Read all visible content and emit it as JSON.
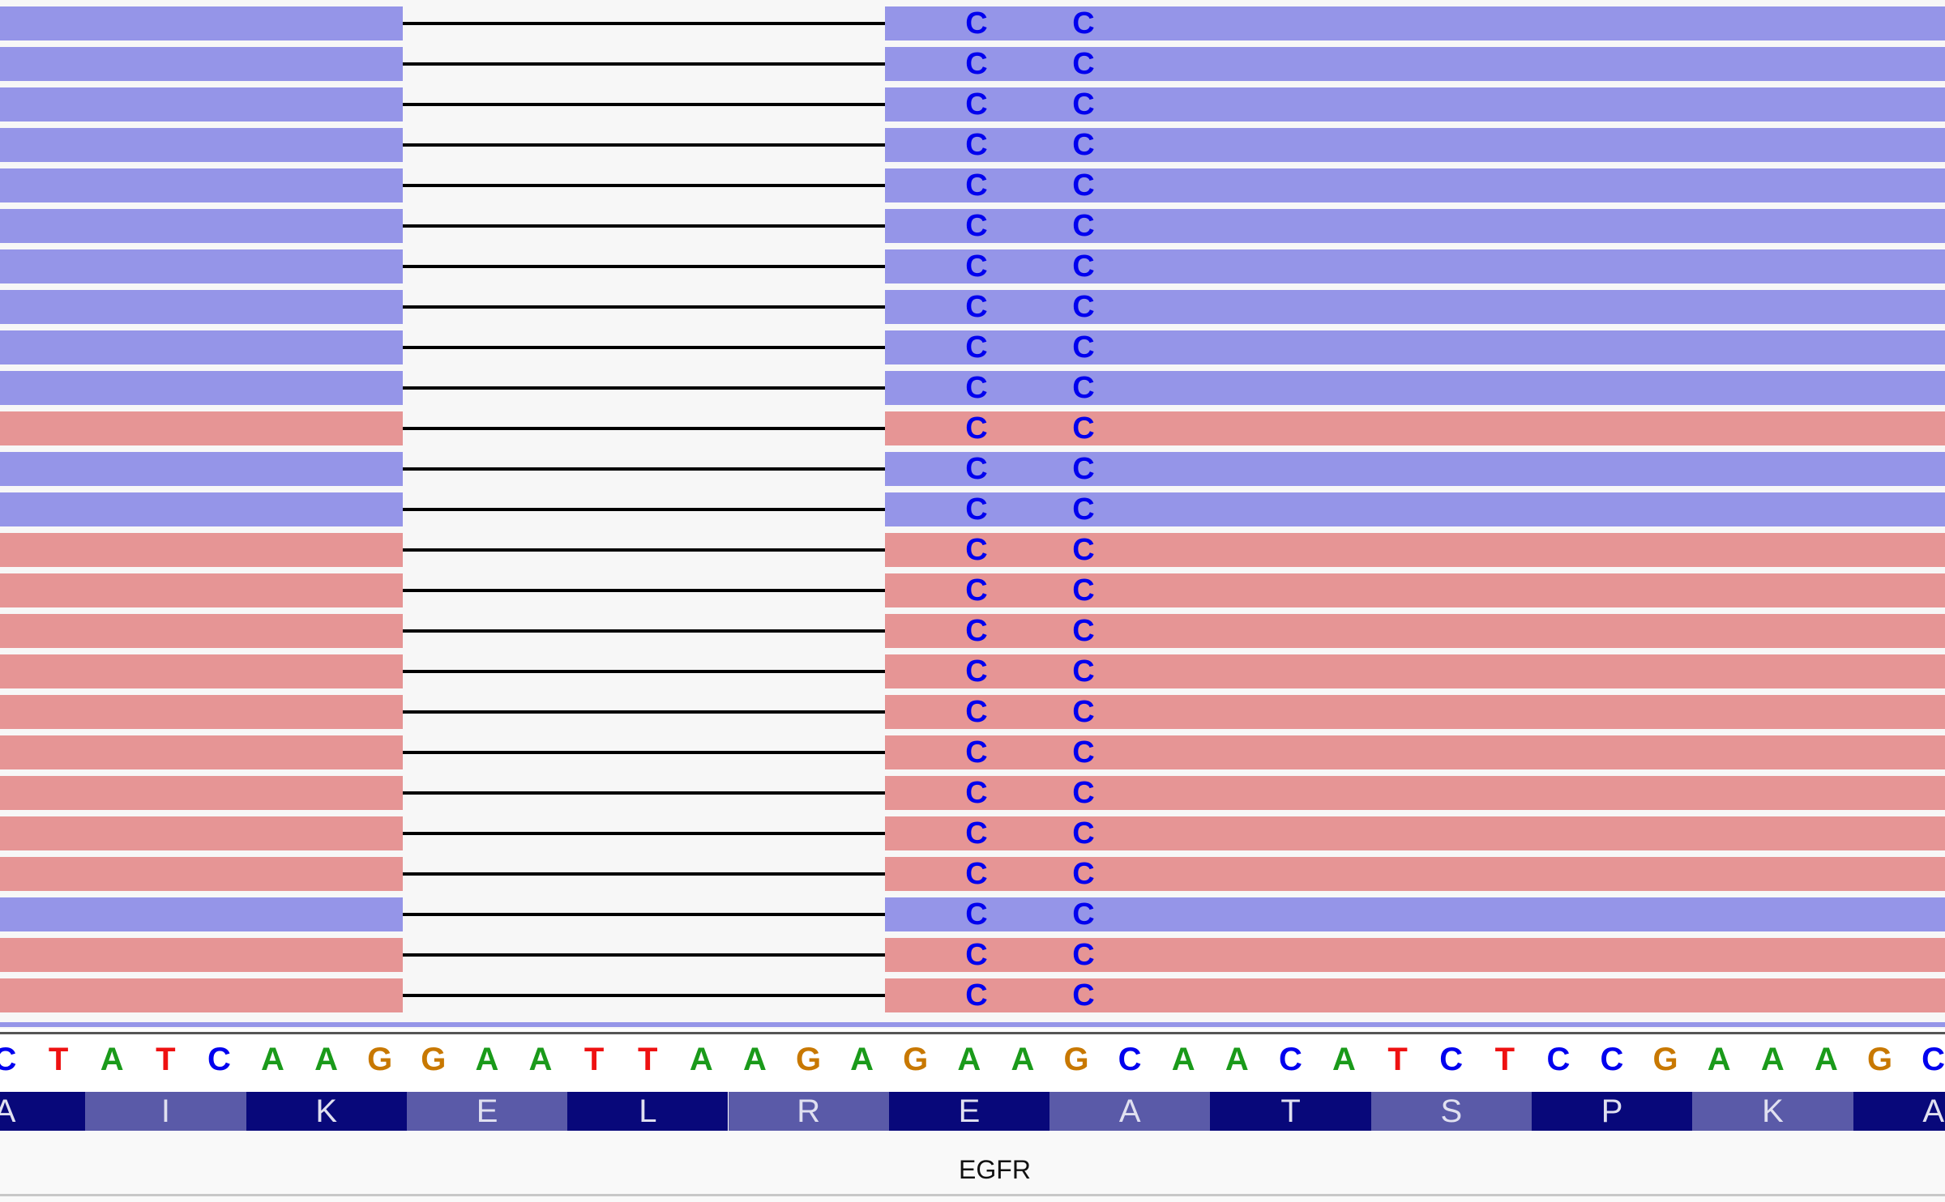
{
  "colors": {
    "forward_strand": "#9595e8",
    "reverse_strand": "#e69595",
    "deletion_gap_background": "#f7f7f7",
    "deletion_line": "#000000",
    "mismatch_base": "#0000ee",
    "base_A": "#1a9a1a",
    "base_C": "#0000ee",
    "base_T": "#ee1111",
    "base_G": "#c87800",
    "aa_dark": "#08087a",
    "aa_light": "#5a5aa8"
  },
  "reads": [
    {
      "strand": "forward",
      "mismatches": [
        "C",
        "C"
      ]
    },
    {
      "strand": "forward",
      "mismatches": [
        "C",
        "C"
      ]
    },
    {
      "strand": "forward",
      "mismatches": [
        "C",
        "C"
      ]
    },
    {
      "strand": "forward",
      "mismatches": [
        "C",
        "C"
      ]
    },
    {
      "strand": "forward",
      "mismatches": [
        "C",
        "C"
      ]
    },
    {
      "strand": "forward",
      "mismatches": [
        "C",
        "C"
      ]
    },
    {
      "strand": "forward",
      "mismatches": [
        "C",
        "C"
      ]
    },
    {
      "strand": "forward",
      "mismatches": [
        "C",
        "C"
      ]
    },
    {
      "strand": "forward",
      "mismatches": [
        "C",
        "C"
      ]
    },
    {
      "strand": "forward",
      "mismatches": [
        "C",
        "C"
      ]
    },
    {
      "strand": "reverse",
      "mismatches": [
        "C",
        "C"
      ]
    },
    {
      "strand": "forward",
      "mismatches": [
        "C",
        "C"
      ]
    },
    {
      "strand": "forward",
      "mismatches": [
        "C",
        "C"
      ]
    },
    {
      "strand": "reverse",
      "mismatches": [
        "C",
        "C"
      ]
    },
    {
      "strand": "reverse",
      "mismatches": [
        "C",
        "C"
      ]
    },
    {
      "strand": "reverse",
      "mismatches": [
        "C",
        "C"
      ]
    },
    {
      "strand": "reverse",
      "mismatches": [
        "C",
        "C"
      ]
    },
    {
      "strand": "reverse",
      "mismatches": [
        "C",
        "C"
      ]
    },
    {
      "strand": "reverse",
      "mismatches": [
        "C",
        "C"
      ]
    },
    {
      "strand": "reverse",
      "mismatches": [
        "C",
        "C"
      ]
    },
    {
      "strand": "reverse",
      "mismatches": [
        "C",
        "C"
      ]
    },
    {
      "strand": "reverse",
      "mismatches": [
        "C",
        "C"
      ]
    },
    {
      "strand": "forward",
      "mismatches": [
        "C",
        "C"
      ]
    },
    {
      "strand": "reverse",
      "mismatches": [
        "C",
        "C"
      ]
    },
    {
      "strand": "reverse",
      "mismatches": [
        "C",
        "C"
      ]
    }
  ],
  "reference_sequence": [
    "C",
    "T",
    "A",
    "T",
    "C",
    "A",
    "A",
    "G",
    "G",
    "A",
    "A",
    "T",
    "T",
    "A",
    "A",
    "G",
    "A",
    "G",
    "A",
    "A",
    "G",
    "C",
    "A",
    "A",
    "C",
    "A",
    "T",
    "C",
    "T",
    "C",
    "C",
    "G",
    "A",
    "A",
    "A",
    "G",
    "C"
  ],
  "amino_acids": [
    {
      "label": "A",
      "shade": "dark"
    },
    {
      "label": "I",
      "shade": "light"
    },
    {
      "label": "K",
      "shade": "dark"
    },
    {
      "label": "E",
      "shade": "light"
    },
    {
      "label": "L",
      "shade": "dark"
    },
    {
      "label": "R",
      "shade": "light"
    },
    {
      "label": "E",
      "shade": "dark"
    },
    {
      "label": "A",
      "shade": "light"
    },
    {
      "label": "T",
      "shade": "dark"
    },
    {
      "label": "S",
      "shade": "light"
    },
    {
      "label": "P",
      "shade": "dark"
    },
    {
      "label": "K",
      "shade": "light"
    },
    {
      "label": "A",
      "shade": "dark"
    }
  ],
  "gene": {
    "name": "EGFR"
  }
}
